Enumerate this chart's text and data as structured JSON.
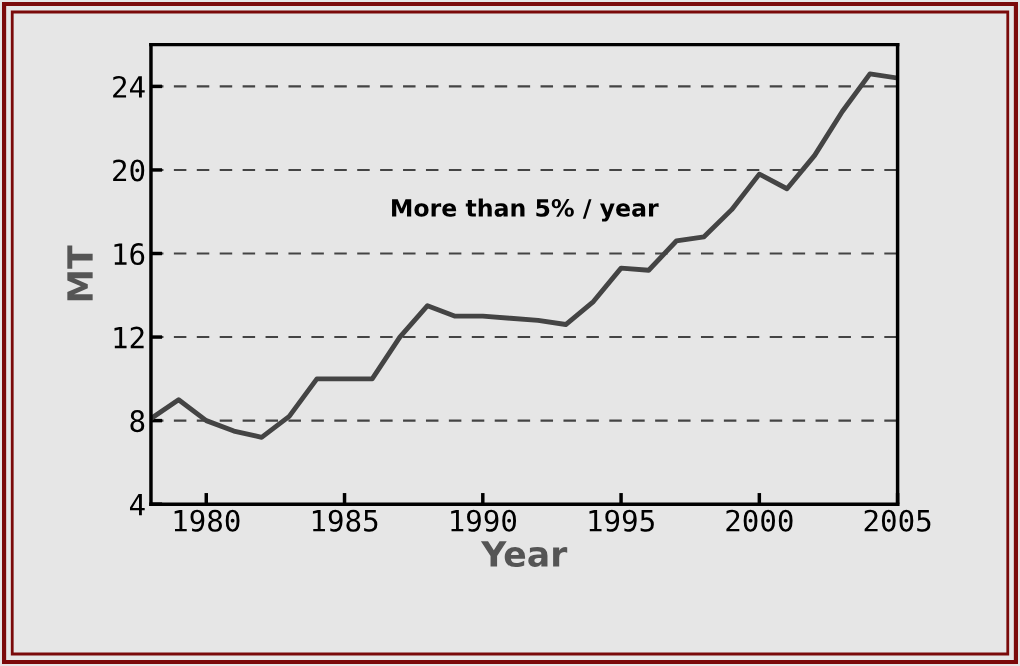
{
  "chart_data": {
    "type": "line",
    "xlabel": "Year",
    "ylabel": "MT",
    "x": [
      1978,
      1979,
      1980,
      1981,
      1982,
      1983,
      1984,
      1985,
      1986,
      1987,
      1988,
      1989,
      1990,
      1991,
      1992,
      1993,
      1994,
      1995,
      1996,
      1997,
      1998,
      1999,
      2000,
      2001,
      2002,
      2003,
      2004,
      2005
    ],
    "series": [
      {
        "color": "#444444",
        "values": [
          8.1,
          9.0,
          8.0,
          7.5,
          7.2,
          8.2,
          10.0,
          10.0,
          10.0,
          12.0,
          13.5,
          13.0,
          13.0,
          12.9,
          12.8,
          12.6,
          13.7,
          15.3,
          15.2,
          16.6,
          16.8,
          18.1,
          19.8,
          19.1,
          20.7,
          22.8,
          24.6,
          24.4
        ]
      }
    ],
    "xlim": [
      1978,
      2005
    ],
    "xticks": [
      1980,
      1985,
      1990,
      1995,
      2000,
      2005
    ],
    "ylim": [
      4,
      26
    ],
    "yticks": [
      4,
      8,
      12,
      16,
      20,
      24
    ],
    "grid": "y",
    "line_style": "solid",
    "marker": "none",
    "annotations": [
      "More than 5% / year"
    ]
  }
}
